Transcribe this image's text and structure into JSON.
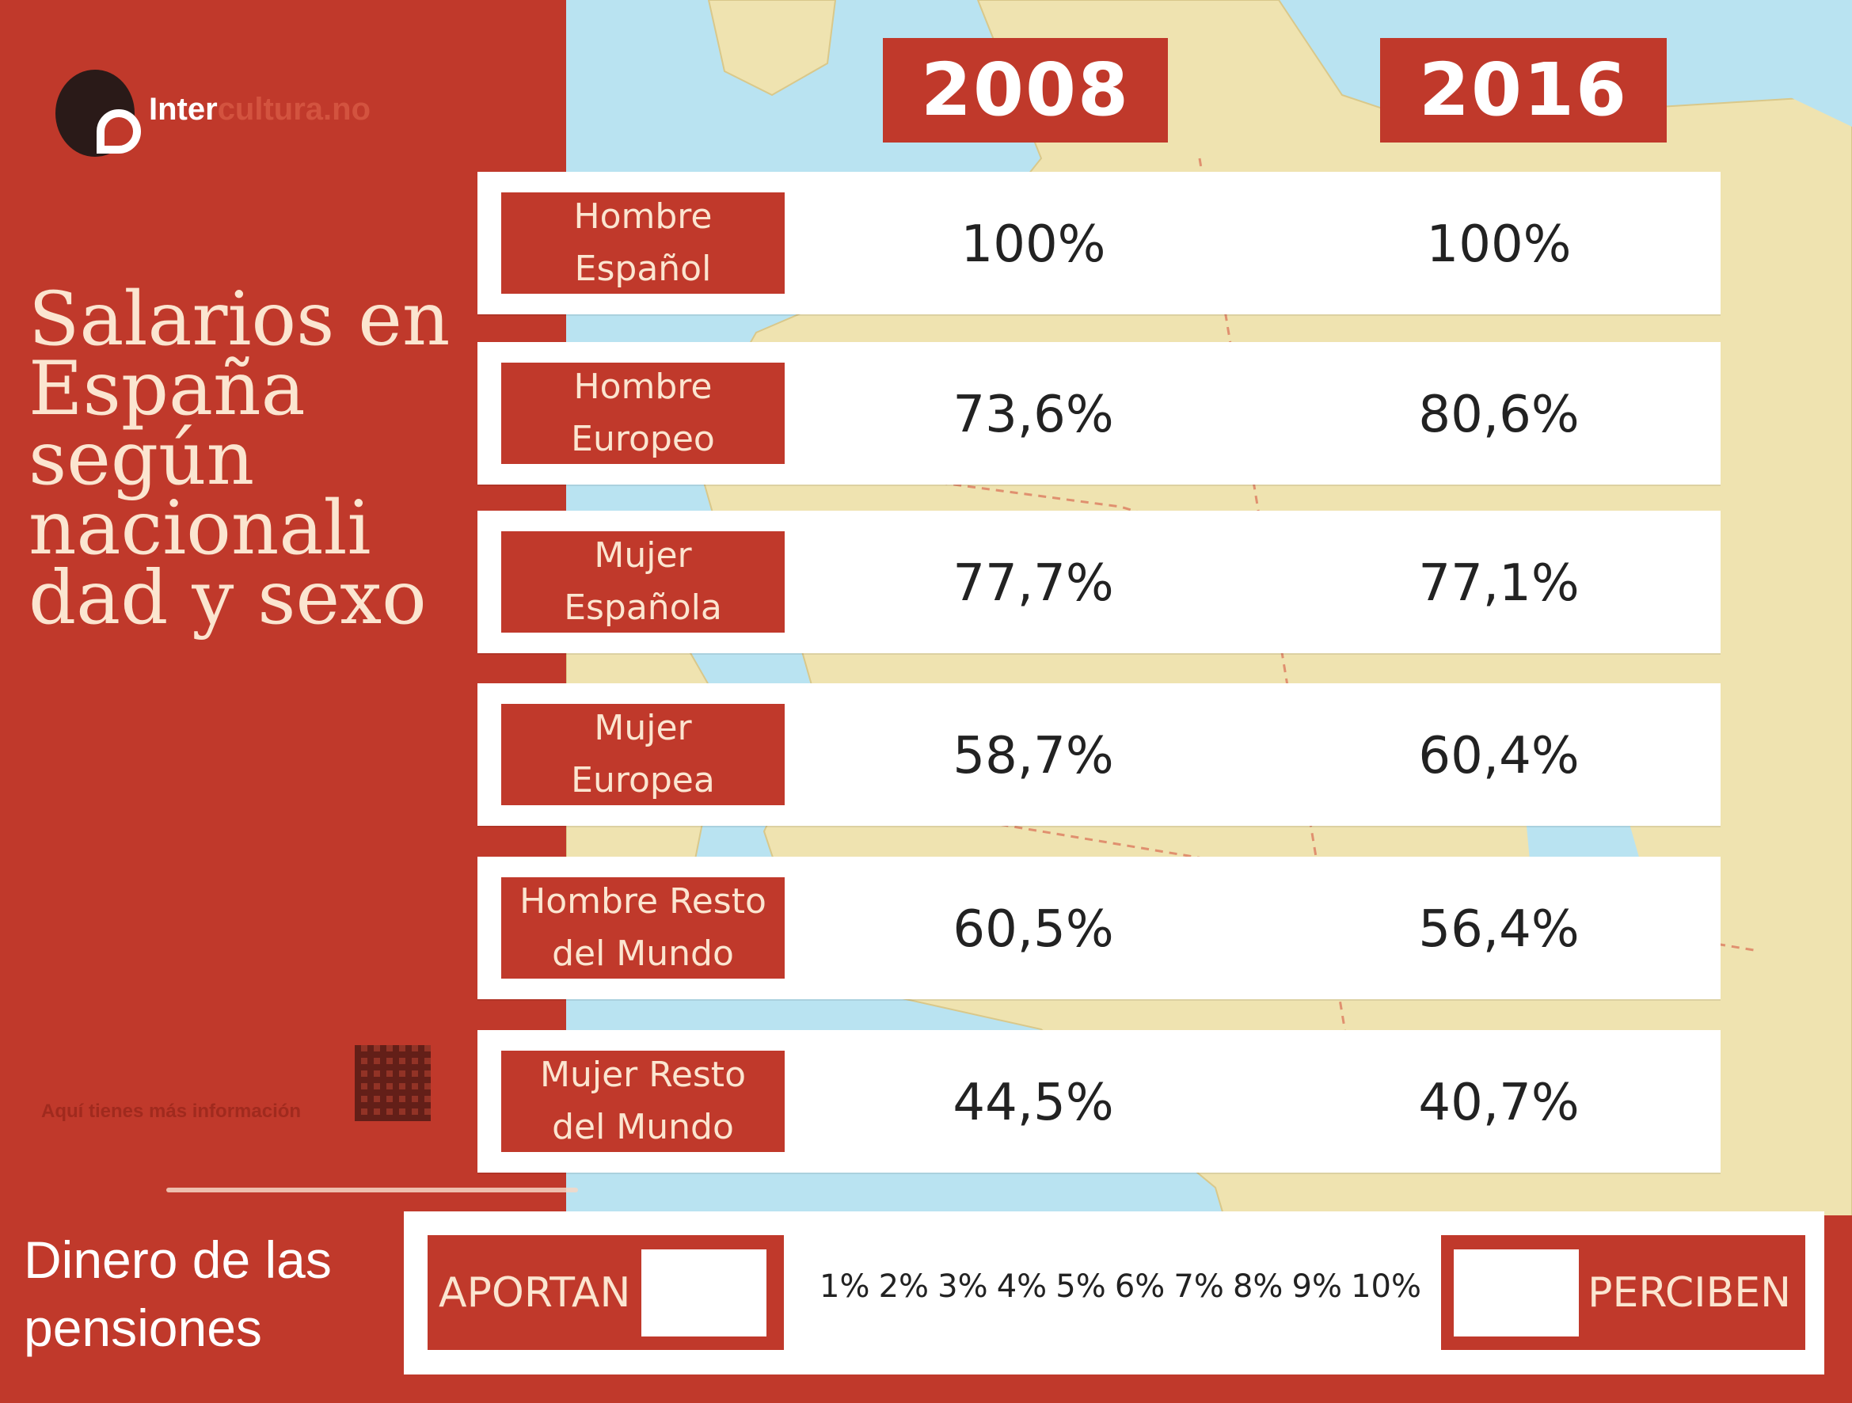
{
  "colors": {
    "accent": "#c0392b",
    "text_light": "#fbe5d0",
    "map_sea": "#b9e3f1",
    "map_land": "#efe3b0"
  },
  "logo": {
    "text_bold": "Inter",
    "text_light": "cultura.no"
  },
  "title": "Salarios en España según nacionali dad y sexo",
  "more_info": "Aquí tienes más información",
  "headers": {
    "year1": "2008",
    "year2": "2016"
  },
  "rows": [
    {
      "label": [
        "Hombre",
        "Español"
      ],
      "v2008": "100%",
      "v2016": "100%"
    },
    {
      "label": [
        "Hombre",
        "Europeo"
      ],
      "v2008": "73,6%",
      "v2016": "80,6%"
    },
    {
      "label": [
        "Mujer",
        "Española"
      ],
      "v2008": "77,7%",
      "v2016": "77,1%"
    },
    {
      "label": [
        "Mujer",
        "Europea"
      ],
      "v2008": "58,7%",
      "v2016": "60,4%"
    },
    {
      "label": [
        "Hombre Resto",
        "del Mundo"
      ],
      "v2008": "60,5%",
      "v2016": "56,4%"
    },
    {
      "label": [
        "Mujer Resto",
        "del Mundo"
      ],
      "v2008": "44,5%",
      "v2016": "40,7%"
    }
  ],
  "pensions": {
    "title": "Dinero de  las pensiones",
    "aportan": "APORTAN",
    "perciben": "PERCIBEN",
    "scale": [
      "1%",
      "2%",
      "3%",
      "4%",
      "5%",
      "6%",
      "7%",
      "8%",
      "9%",
      "10%"
    ]
  }
}
